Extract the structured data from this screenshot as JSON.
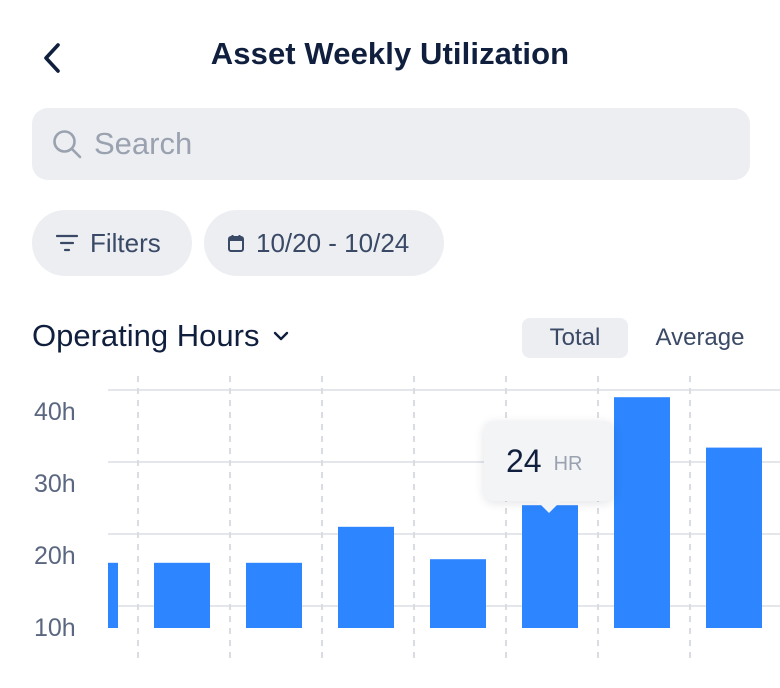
{
  "header": {
    "title": "Asset Weekly Utilization"
  },
  "search": {
    "placeholder": "Search",
    "value": ""
  },
  "filters": {
    "label": "Filters",
    "date_range": "10/20 - 10/24"
  },
  "metric": {
    "label": "Operating Hours"
  },
  "toggle": {
    "total": "Total",
    "average": "Average",
    "selected": "Total"
  },
  "tooltip": {
    "value": "24",
    "unit": "HR"
  },
  "colors": {
    "bar": "#2d86ff",
    "text": "#0f1f3d",
    "muted": "#5b6780",
    "surface": "#eceef2"
  },
  "chart_data": {
    "type": "bar",
    "yticks": [
      "40h",
      "30h",
      "20h",
      "10h"
    ],
    "ytick_values": [
      40,
      30,
      20,
      10
    ],
    "ylim": [
      10,
      40
    ],
    "values": [
      16,
      16,
      16,
      21,
      16.5,
      24,
      39,
      32
    ],
    "selected_index": 5,
    "grid": true
  }
}
